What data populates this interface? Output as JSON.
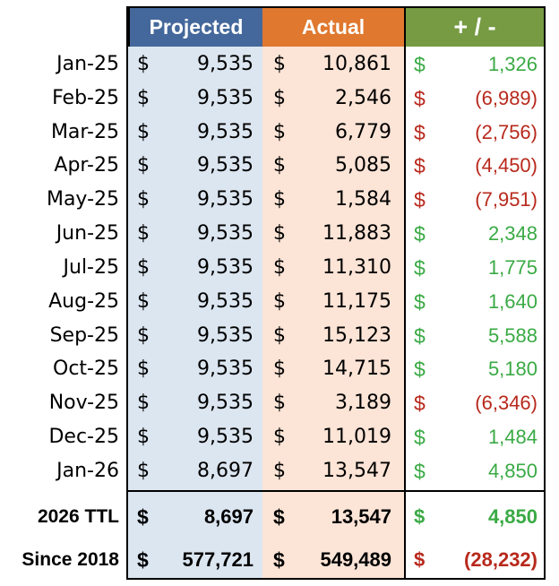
{
  "headers": {
    "projected": "Projected",
    "actual": "Actual",
    "diff": "+ / -"
  },
  "currency_symbol": "$",
  "colors": {
    "projected_header": "#44689b",
    "actual_header": "#e0782f",
    "diff_header": "#769b43",
    "projected_fill": "#dce6f1",
    "actual_fill": "#fce4d6",
    "positive": "#3aaa45",
    "negative": "#b8291c"
  },
  "rows": [
    {
      "label": "Jan-25",
      "projected": "9,535",
      "actual": "10,861",
      "diff": "1,326",
      "sign": "pos"
    },
    {
      "label": "Feb-25",
      "projected": "9,535",
      "actual": "2,546",
      "diff": "(6,989)",
      "sign": "neg"
    },
    {
      "label": "Mar-25",
      "projected": "9,535",
      "actual": "6,779",
      "diff": "(2,756)",
      "sign": "neg"
    },
    {
      "label": "Apr-25",
      "projected": "9,535",
      "actual": "5,085",
      "diff": "(4,450)",
      "sign": "neg"
    },
    {
      "label": "May-25",
      "projected": "9,535",
      "actual": "1,584",
      "diff": "(7,951)",
      "sign": "neg"
    },
    {
      "label": "Jun-25",
      "projected": "9,535",
      "actual": "11,883",
      "diff": "2,348",
      "sign": "pos"
    },
    {
      "label": "Jul-25",
      "projected": "9,535",
      "actual": "11,310",
      "diff": "1,775",
      "sign": "pos"
    },
    {
      "label": "Aug-25",
      "projected": "9,535",
      "actual": "11,175",
      "diff": "1,640",
      "sign": "pos"
    },
    {
      "label": "Sep-25",
      "projected": "9,535",
      "actual": "15,123",
      "diff": "5,588",
      "sign": "pos"
    },
    {
      "label": "Oct-25",
      "projected": "9,535",
      "actual": "14,715",
      "diff": "5,180",
      "sign": "pos"
    },
    {
      "label": "Nov-25",
      "projected": "9,535",
      "actual": "3,189",
      "diff": "(6,346)",
      "sign": "neg"
    },
    {
      "label": "Dec-25",
      "projected": "9,535",
      "actual": "11,019",
      "diff": "1,484",
      "sign": "pos"
    },
    {
      "label": "Jan-26",
      "projected": "8,697",
      "actual": "13,547",
      "diff": "4,850",
      "sign": "pos"
    }
  ],
  "totals": [
    {
      "label": "2026 TTL",
      "projected": "8,697",
      "actual": "13,547",
      "diff": "4,850",
      "sign": "pos"
    },
    {
      "label": "Since 2018",
      "projected": "577,721",
      "actual": "549,489",
      "diff": "(28,232)",
      "sign": "neg"
    }
  ]
}
